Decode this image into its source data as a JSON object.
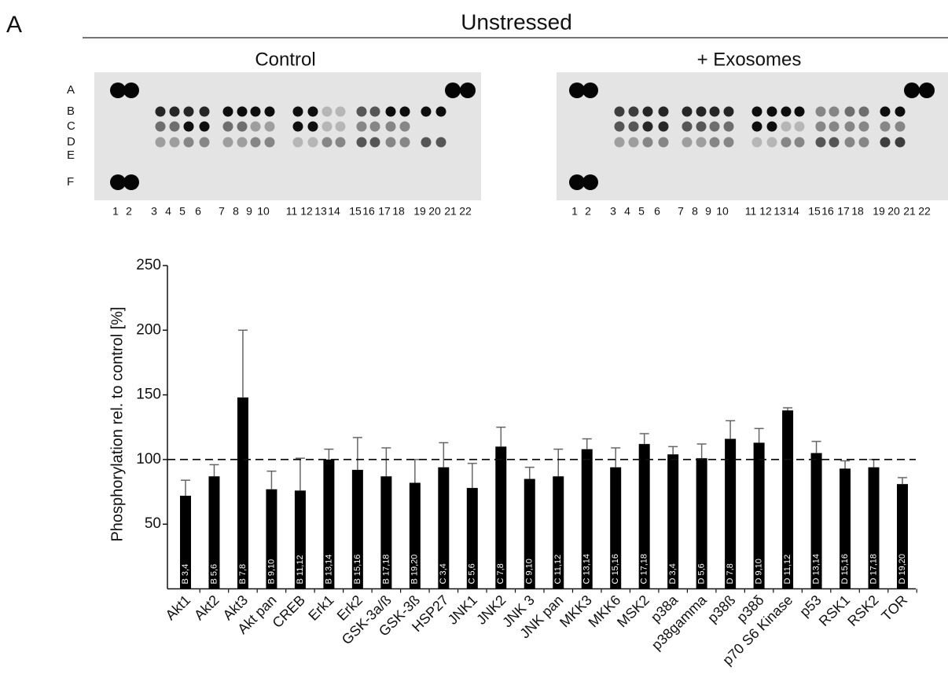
{
  "panel_label": "A",
  "title": "Unstressed",
  "blots": [
    {
      "title": "Control",
      "rows": [
        "A",
        "B",
        "C",
        "D",
        "E",
        "F"
      ],
      "columns": [
        "1",
        "2",
        "3",
        "4",
        "5",
        "6",
        "7",
        "8",
        "9",
        "10",
        "11",
        "12",
        "13",
        "14",
        "15",
        "16",
        "17",
        "18",
        "19",
        "20",
        "21",
        "22"
      ]
    },
    {
      "title": "+ Exosomes",
      "columns": [
        "1",
        "2",
        "3",
        "4",
        "5",
        "6",
        "7",
        "8",
        "9",
        "10",
        "11",
        "12",
        "13",
        "14",
        "15",
        "16",
        "17",
        "18",
        "19",
        "20",
        "21",
        "22"
      ]
    }
  ],
  "chart_data": {
    "type": "bar",
    "ylabel": "Phosphorylation rel. to control [%]",
    "categories": [
      "Akt1",
      "Akt2",
      "Akt3",
      "Akt pan",
      "CREB",
      "Erk1",
      "Erk2",
      "GSK-3a/ß",
      "GSK-3ß",
      "HSP27",
      "JNK1",
      "JNK2",
      "JNK 3",
      "JNK pan",
      "MKK3",
      "MKK6",
      "MSK2",
      "p38a",
      "p38gamma",
      "p38ß",
      "p38δ",
      "p70 S6 Kinase",
      "p53",
      "RSK1",
      "RSK2",
      "TOR"
    ],
    "values": [
      72,
      87,
      148,
      77,
      76,
      100,
      92,
      87,
      82,
      94,
      78,
      110,
      85,
      87,
      108,
      94,
      112,
      104,
      101,
      116,
      113,
      138,
      105,
      93,
      94,
      81
    ],
    "errors": [
      12,
      9,
      52,
      14,
      25,
      8,
      25,
      22,
      18,
      19,
      19,
      15,
      9,
      21,
      8,
      15,
      8,
      6,
      11,
      14,
      11,
      2,
      9,
      6,
      6,
      5
    ],
    "bar_labels": [
      "B 3,4",
      "B 5,6",
      "B 7,8",
      "B 9,10",
      "B 11,12",
      "B 13,14",
      "B 15,16",
      "B 17,18",
      "B 19,20",
      "C 3,4",
      "C 5,6",
      "C 7,8",
      "C 9,10",
      "C 11,12",
      "C 13,14",
      "C 15,16",
      "C 17,18",
      "D 3,4",
      "D 5,6",
      "D 7,8",
      "D 9,10",
      "D 11,12",
      "D 13,14",
      "D 15,16",
      "D 17,18",
      "D 19,20"
    ],
    "color": "#000000",
    "reference_line": 100,
    "ylim": [
      0,
      250
    ],
    "yticks": [
      50,
      100,
      150,
      200,
      250
    ]
  }
}
